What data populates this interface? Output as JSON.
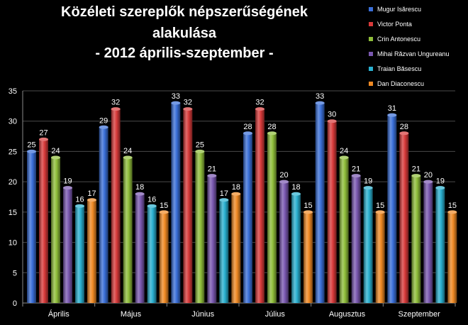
{
  "chart_data": {
    "type": "bar",
    "title_lines": [
      "Közéleti szereplők népszerűségének",
      "alakulása",
      "- 2012 április-szeptember -"
    ],
    "categories": [
      "Április",
      "Május",
      "Június",
      "Július",
      "Augusztus",
      "Szeptember"
    ],
    "series": [
      {
        "name": "Mugur Isărescu",
        "color": "#3a6fd8",
        "values": [
          25,
          29,
          33,
          28,
          33,
          31
        ]
      },
      {
        "name": "Victor Ponta",
        "color": "#d83a3a",
        "values": [
          27,
          32,
          32,
          32,
          30,
          28
        ]
      },
      {
        "name": "Crin Antonescu",
        "color": "#8fbe3a",
        "values": [
          24,
          24,
          25,
          28,
          24,
          21
        ]
      },
      {
        "name": "Mihai Răzvan Ungureanu",
        "color": "#7a58b0",
        "values": [
          19,
          18,
          21,
          20,
          21,
          20
        ]
      },
      {
        "name": "Traian Băsescu",
        "color": "#2ab0d0",
        "values": [
          16,
          16,
          17,
          18,
          19,
          19
        ]
      },
      {
        "name": "Dan Diaconescu",
        "color": "#f08a24",
        "values": [
          17,
          15,
          18,
          15,
          15,
          15
        ]
      }
    ],
    "ylim": [
      0,
      35
    ],
    "yticks": [
      0,
      5,
      10,
      15,
      20,
      25,
      30,
      35
    ],
    "grid": true,
    "legend_position": "top-right",
    "data_labels": true
  }
}
